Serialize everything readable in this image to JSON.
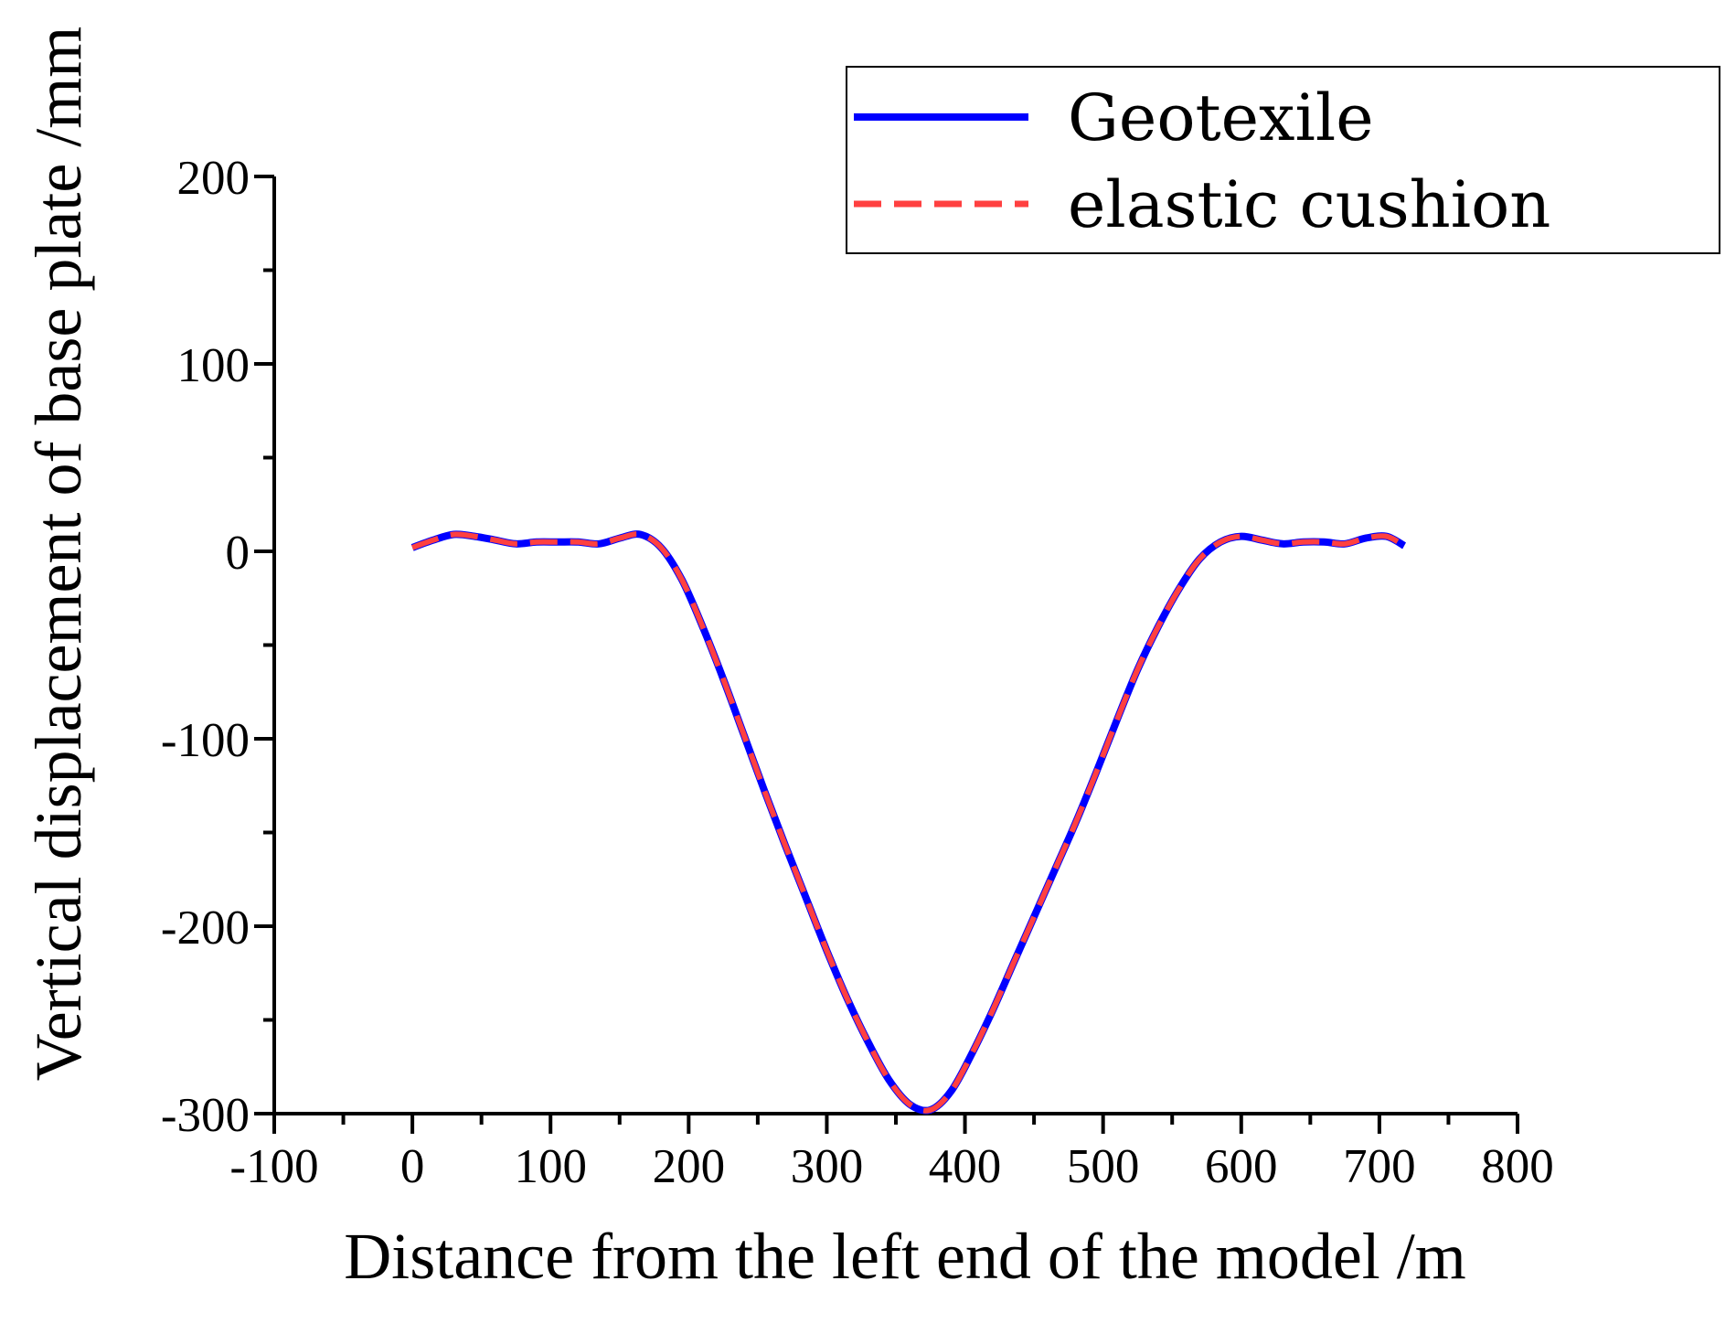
{
  "chart_data": {
    "type": "line",
    "title": "",
    "xlabel": "Distance from the left end of the model /m",
    "ylabel": "Vertical displacement of base plate /mm",
    "xlim": [
      -100,
      800
    ],
    "ylim": [
      -300,
      200
    ],
    "x_ticks": [
      -100,
      0,
      100,
      200,
      300,
      400,
      500,
      600,
      700,
      800
    ],
    "y_ticks": [
      -300,
      -200,
      -100,
      0,
      100,
      200
    ],
    "x_tick_labels": [
      "-100",
      "0",
      "100",
      "200",
      "300",
      "400",
      "500",
      "600",
      "700",
      "800"
    ],
    "y_tick_labels": [
      "-300",
      "-200",
      "-100",
      "0",
      "100",
      "200"
    ],
    "grid": false,
    "legend_position": "top-right",
    "series": [
      {
        "name": "Geotexile",
        "color": "#0000ff",
        "style": "solid",
        "x": [
          0,
          15,
          30,
          45,
          60,
          75,
          90,
          105,
          120,
          135,
          150,
          165,
          180,
          195,
          210,
          225,
          240,
          255,
          270,
          285,
          300,
          315,
          330,
          345,
          360,
          375,
          390,
          405,
          420,
          435,
          450,
          465,
          480,
          495,
          510,
          525,
          540,
          555,
          570,
          585,
          600,
          615,
          630,
          645,
          660,
          675,
          690,
          705,
          718
        ],
        "y": [
          2,
          6,
          9,
          8,
          6,
          4,
          5,
          5,
          5,
          4,
          7,
          9,
          2,
          -15,
          -40,
          -68,
          -98,
          -128,
          -157,
          -185,
          -213,
          -239,
          -262,
          -282,
          -295,
          -298,
          -288,
          -268,
          -245,
          -220,
          -195,
          -170,
          -145,
          -118,
          -90,
          -63,
          -40,
          -20,
          -4,
          5,
          8,
          6,
          4,
          5,
          5,
          4,
          7,
          8,
          3
        ]
      },
      {
        "name": "elastic cushion",
        "color": "#ff4040",
        "style": "dashed",
        "x": [
          0,
          15,
          30,
          45,
          60,
          75,
          90,
          105,
          120,
          135,
          150,
          165,
          180,
          195,
          210,
          225,
          240,
          255,
          270,
          285,
          300,
          315,
          330,
          345,
          360,
          375,
          390,
          405,
          420,
          435,
          450,
          465,
          480,
          495,
          510,
          525,
          540,
          555,
          570,
          585,
          600,
          615,
          630,
          645,
          660,
          675,
          690,
          705,
          718
        ],
        "y": [
          2,
          6,
          9,
          8,
          6,
          4,
          5,
          5,
          5,
          4,
          7,
          9,
          2,
          -15,
          -40,
          -68,
          -98,
          -128,
          -157,
          -185,
          -213,
          -239,
          -262,
          -282,
          -295,
          -298,
          -288,
          -268,
          -245,
          -220,
          -195,
          -170,
          -145,
          -118,
          -90,
          -63,
          -40,
          -20,
          -4,
          5,
          8,
          6,
          4,
          5,
          5,
          4,
          7,
          8,
          3
        ]
      }
    ]
  }
}
